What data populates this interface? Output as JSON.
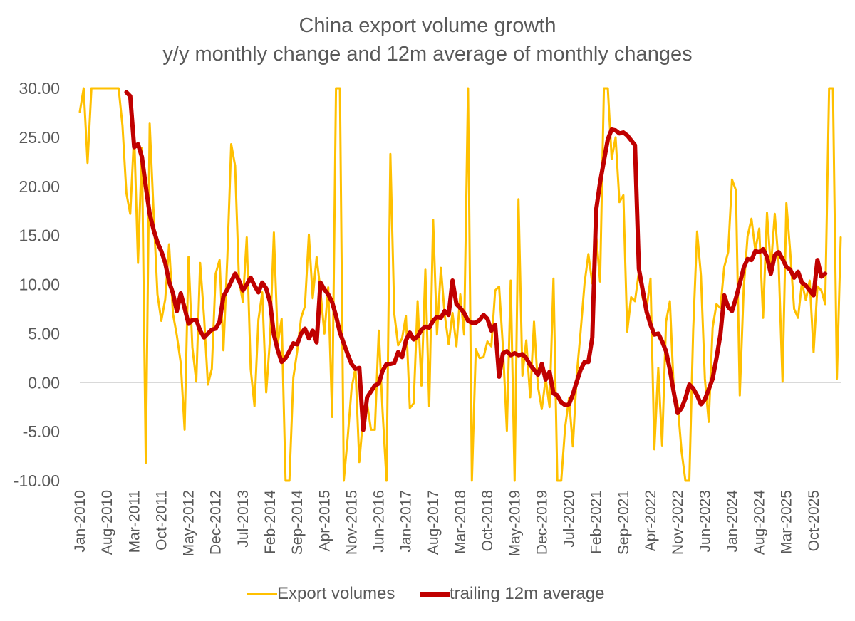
{
  "chart_data": {
    "type": "line",
    "title": "China export volume growth",
    "subtitle": "y/y monthly change and 12m average of monthly changes",
    "xlabel": "",
    "ylabel": "",
    "ylim": [
      -10,
      30
    ],
    "yticks": [
      "30.00",
      "25.00",
      "20.00",
      "15.00",
      "10.00",
      "5.00",
      "0.00",
      "-5.00",
      "-10.00"
    ],
    "xticks": [
      "Jan-2010",
      "Aug-2010",
      "Mar-2011",
      "Oct-2011",
      "May-2012",
      "Dec-2012",
      "Jul-2013",
      "Feb-2014",
      "Sep-2014",
      "Apr-2015",
      "Nov-2015",
      "Jun-2016",
      "Jan-2017",
      "Aug-2017",
      "Mar-2018",
      "Oct-2018",
      "May-2019",
      "Dec-2019",
      "Jul-2020",
      "Feb-2021",
      "Sep-2021",
      "Apr-2022",
      "Nov-2022",
      "Jun-2023",
      "Jan-2024",
      "Aug-2024",
      "Mar-2025",
      "Oct-2025"
    ],
    "x_start": "Jan-2010",
    "x_frequency": "monthly",
    "legend_position": "bottom",
    "grid": false,
    "series": [
      {
        "name": "Export volumes",
        "color": "#FFC000",
        "values": [
          27.6,
          30,
          22.4,
          30,
          30,
          30,
          30,
          30,
          30,
          30,
          30,
          26.2,
          19.3,
          17.2,
          25.4,
          12.2,
          23.9,
          -8.2,
          26.4,
          17.5,
          9.0,
          6.3,
          8.5,
          14.1,
          7.0,
          4.8,
          2.0,
          -4.8,
          12.8,
          3.6,
          0.1,
          12.2,
          6.7,
          -0.2,
          1.4,
          11.1,
          12.5,
          3.3,
          12.8,
          24.3,
          22.1,
          10.5,
          8.2,
          14.8,
          1.4,
          -2.4,
          6.4,
          9.2,
          -1.0,
          4.5,
          15.3,
          4.0,
          6.5,
          -10,
          -10,
          0.5,
          3.2,
          6.6,
          7.8,
          15.1,
          8.6,
          12.8,
          9.3,
          5.0,
          9.7,
          -3.5,
          30,
          30,
          -10,
          -5.6,
          -0.6,
          1.5,
          -8.1,
          -3.4,
          -2.1,
          -4.8,
          -4.8,
          5.3,
          -3.0,
          -10,
          23.3,
          7.0,
          3.8,
          4.5,
          6.8,
          -2.6,
          -2.1,
          8.3,
          -0.3,
          11.5,
          -2.4,
          16.6,
          4.9,
          11.7,
          6.9,
          3.9,
          7.1,
          3.7,
          9.0,
          4.9,
          30,
          -10,
          3.4,
          2.5,
          2.6,
          4.2,
          3.7,
          9.4,
          9.8,
          3.6,
          -4.9,
          10.4,
          -10,
          18.7,
          0.7,
          4.3,
          -1.5,
          6.2,
          -0.4,
          -2.7,
          0.4,
          -2.5,
          10.6,
          -10,
          -10,
          -4.6,
          -1.6,
          -6.5,
          0.8,
          5.2,
          10.1,
          13.1,
          10.1,
          15.1,
          10.3,
          30,
          30,
          22.8,
          25.0,
          18.4,
          19.1,
          5.2,
          8.7,
          8.3,
          11.3,
          8.6,
          7.6,
          10.6,
          -6.8,
          1.5,
          -6.4,
          6.2,
          8.3,
          -0.8,
          -2.2,
          -7.0,
          -10,
          -10,
          5.4,
          15.4,
          10.9,
          0.4,
          -4.0,
          5.6,
          8.0,
          7.6,
          11.8,
          13.3,
          20.7,
          19.6,
          -1.3,
          9.6,
          14.9,
          16.7,
          13.5,
          15.7,
          6.6,
          17.3,
          11.7,
          17.2,
          12.2,
          0.1,
          18.3,
          13.2,
          7.5,
          6.6,
          10.2,
          8.4,
          10.4,
          3.1,
          9.8,
          9.4,
          8.0,
          30,
          30,
          0.4,
          14.8
        ]
      },
      {
        "name": "trailing 12m average",
        "color": "#C00000",
        "start_index": 12,
        "values": [
          29.6,
          29.2,
          24.0,
          24.3,
          23.0,
          20.0,
          17.2,
          15.6,
          14.3,
          13.4,
          12.2,
          10.3,
          9.1,
          7.3,
          9.1,
          7.6,
          6.0,
          6.4,
          6.4,
          5.3,
          4.6,
          5.0,
          5.4,
          5.5,
          6.2,
          8.8,
          9.5,
          10.3,
          11.1,
          10.4,
          9.4,
          10.0,
          10.7,
          9.9,
          9.2,
          10.2,
          9.6,
          8.2,
          4.9,
          3.3,
          2.1,
          2.5,
          3.2,
          4.0,
          3.9,
          5.0,
          5.5,
          4.5,
          5.3,
          4.1,
          10.2,
          9.5,
          9.0,
          8.2,
          6.8,
          5.1,
          4.0,
          2.9,
          1.9,
          1.4,
          1.5,
          -4.8,
          -1.5,
          -0.9,
          -0.3,
          -0.1,
          1.2,
          1.9,
          1.9,
          2.0,
          3.1,
          2.6,
          4.3,
          5.1,
          4.4,
          4.7,
          5.4,
          5.7,
          5.6,
          6.3,
          6.7,
          6.6,
          7.3,
          6.9,
          10.4,
          8.0,
          7.6,
          7.1,
          6.3,
          6.1,
          6.1,
          6.4,
          6.9,
          6.5,
          5.3,
          5.9,
          0.6,
          3.0,
          3.2,
          2.8,
          3.0,
          2.8,
          2.9,
          2.5,
          1.8,
          1.3,
          0.8,
          1.9,
          0.3,
          1.1,
          -1.1,
          -1.3,
          -2.0,
          -2.3,
          -2.2,
          -1.2,
          0.1,
          1.3,
          2.1,
          2.1,
          4.6,
          17.6,
          20.4,
          22.6,
          24.8,
          25.8,
          25.7,
          25.4,
          25.5,
          25.2,
          24.7,
          24.2,
          11.6,
          9.4,
          7.2,
          5.9,
          4.9,
          5.0,
          4.2,
          3.2,
          1.3,
          -1.0,
          -3.1,
          -2.6,
          -1.6,
          -0.2,
          -0.6,
          -1.3,
          -2.2,
          -1.7,
          -0.7,
          0.4,
          2.5,
          4.9,
          8.9,
          7.7,
          7.3,
          8.6,
          10.1,
          11.7,
          12.6,
          12.5,
          13.4,
          13.3,
          13.6,
          12.8,
          11.1,
          13.0,
          13.3,
          12.6,
          11.8,
          11.5,
          10.7,
          11.3,
          10.2,
          9.9,
          9.4,
          8.9,
          12.5,
          10.8,
          11.1
        ]
      }
    ]
  }
}
